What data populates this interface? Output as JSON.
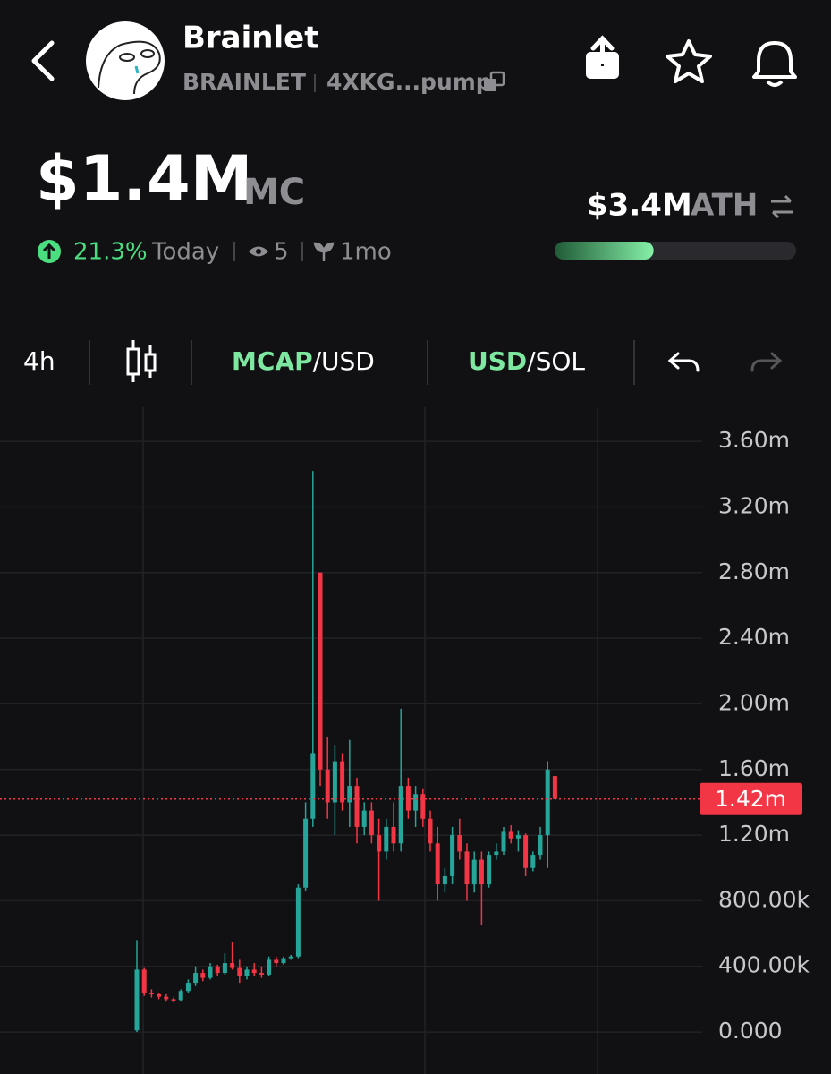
{
  "header": {
    "name": "Brainlet",
    "ticker": "BRAINLET",
    "address": "4XKG...pump"
  },
  "stats": {
    "market_cap": "$1.4M",
    "market_cap_unit": "MC",
    "change": "21.3%",
    "change_period": "Today",
    "watchers": "5",
    "age": "1mo",
    "ath": "$3.4M",
    "ath_label": "ATH",
    "ath_progress": 0.41
  },
  "toolbar": {
    "interval": "4h",
    "pair1_main": "MCAP",
    "pair1_rest": "/USD",
    "pair2_main": "USD",
    "pair2_rest": "/SOL"
  },
  "chart_data": {
    "type": "candlestick",
    "up_color": "#26a69a",
    "down_color": "#f23645",
    "grid": true,
    "ylim": [
      -256000,
      3808000
    ],
    "yticks": [
      {
        "value": 0,
        "label": "0.000"
      },
      {
        "value": 400000,
        "label": "400.00k"
      },
      {
        "value": 800000,
        "label": "800.00k"
      },
      {
        "value": 1200000,
        "label": "1.20m"
      },
      {
        "value": 1600000,
        "label": "1.60m"
      },
      {
        "value": 2000000,
        "label": "2.00m"
      },
      {
        "value": 2400000,
        "label": "2.40m"
      },
      {
        "value": 2800000,
        "label": "2.80m"
      },
      {
        "value": 3200000,
        "label": "3.20m"
      },
      {
        "value": 3600000,
        "label": "3.60m"
      }
    ],
    "price_line": {
      "value": 1420000,
      "label": "1.42m"
    },
    "open": [
      10000,
      380000,
      240000,
      230000,
      215000,
      200000,
      195000,
      250000,
      300000,
      360000,
      330000,
      400000,
      360000,
      420000,
      390000,
      340000,
      380000,
      360000,
      350000,
      440000,
      420000,
      450000,
      460000,
      880000,
      1300000,
      2800000,
      1600000,
      1400000,
      1650000,
      1400000,
      1500000,
      1250000,
      1350000,
      1200000,
      1100000,
      1250000,
      1150000,
      1500000,
      1350000,
      1450000,
      1300000,
      1150000,
      900000,
      950000,
      1200000,
      1100000,
      900000,
      1050000,
      900000,
      1080000,
      1100000,
      1220000,
      1180000,
      1200000,
      1000000,
      1080000,
      1200000,
      1560000
    ],
    "high": [
      560000,
      390000,
      260000,
      240000,
      230000,
      210000,
      260000,
      320000,
      400000,
      380000,
      420000,
      410000,
      480000,
      550000,
      440000,
      400000,
      420000,
      400000,
      460000,
      460000,
      460000,
      470000,
      900000,
      1400000,
      3420000,
      2800000,
      1800000,
      1750000,
      1700000,
      1780000,
      1550000,
      1400000,
      1400000,
      1300000,
      1300000,
      1400000,
      1970000,
      1550000,
      1500000,
      1480000,
      1350000,
      1250000,
      1000000,
      1250000,
      1300000,
      1150000,
      1100000,
      1100000,
      1100000,
      1150000,
      1250000,
      1260000,
      1230000,
      1210000,
      1100000,
      1250000,
      1650000,
      1560000
    ],
    "low": [
      0,
      220000,
      210000,
      200000,
      190000,
      180000,
      190000,
      240000,
      280000,
      310000,
      320000,
      340000,
      350000,
      380000,
      300000,
      320000,
      340000,
      330000,
      340000,
      400000,
      410000,
      440000,
      450000,
      860000,
      1250000,
      1500000,
      1300000,
      1200000,
      1350000,
      1250000,
      1150000,
      1200000,
      1150000,
      800000,
      1050000,
      1100000,
      1100000,
      1300000,
      1250000,
      1250000,
      1100000,
      800000,
      850000,
      900000,
      1050000,
      800000,
      850000,
      650000,
      880000,
      1050000,
      1080000,
      1150000,
      1100000,
      950000,
      980000,
      1050000,
      1000000,
      1420000
    ],
    "close": [
      380000,
      240000,
      230000,
      215000,
      200000,
      195000,
      250000,
      300000,
      360000,
      330000,
      400000,
      360000,
      420000,
      390000,
      340000,
      380000,
      360000,
      350000,
      440000,
      420000,
      450000,
      460000,
      880000,
      1300000,
      1700000,
      1600000,
      1400000,
      1650000,
      1400000,
      1500000,
      1250000,
      1350000,
      1200000,
      1100000,
      1250000,
      1150000,
      1500000,
      1350000,
      1450000,
      1300000,
      1150000,
      900000,
      950000,
      1200000,
      1100000,
      900000,
      1050000,
      900000,
      1080000,
      1100000,
      1220000,
      1180000,
      1200000,
      1000000,
      1080000,
      1200000,
      1600000,
      1420000
    ]
  }
}
